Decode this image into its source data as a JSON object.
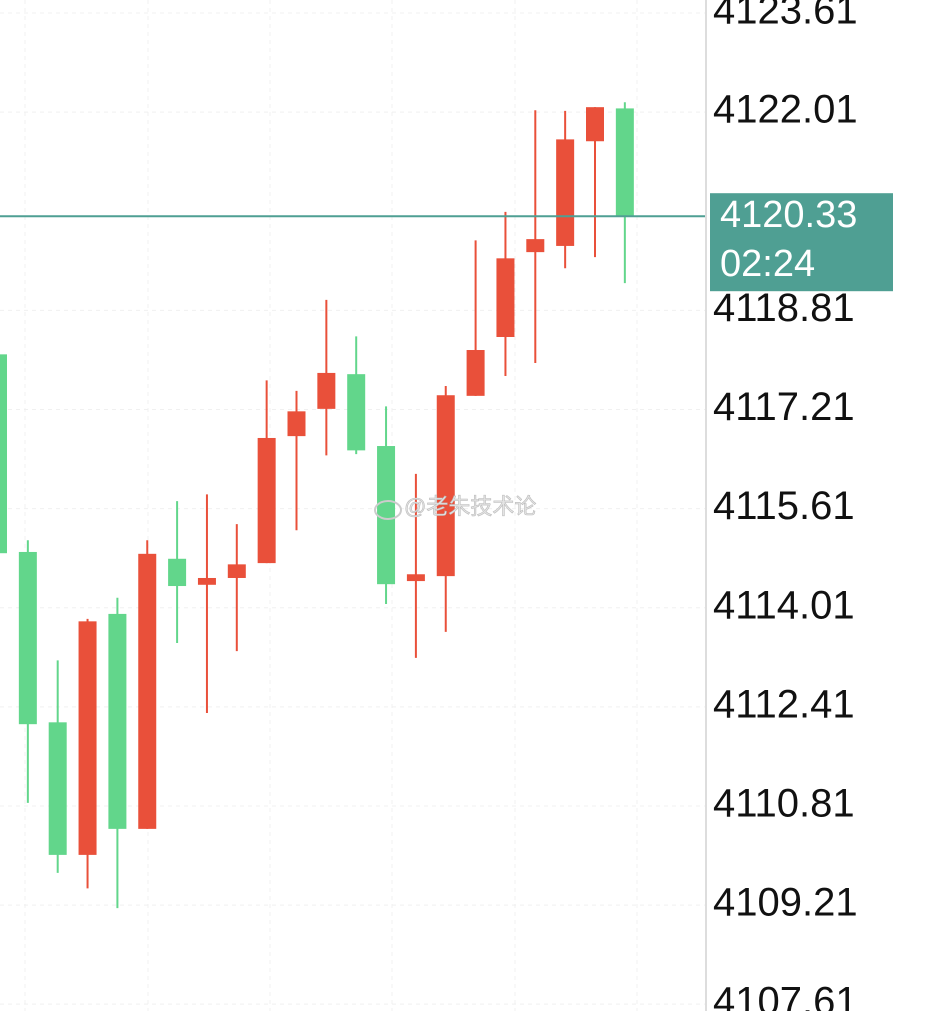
{
  "chart_data": {
    "type": "candlestick",
    "open": [
      4118.1,
      4114.91,
      4112.16,
      4110.02,
      4113.91,
      4110.44,
      4114.8,
      4114.38,
      4114.49,
      4114.73,
      4116.78,
      4117.22,
      4117.78,
      4116.62,
      4114.44,
      4114.52,
      4117.43,
      4118.38,
      4119.75,
      4119.85,
      4121.54,
      4122.07
    ],
    "high": [
      4118.1,
      4115.1,
      4113.16,
      4113.83,
      4114.17,
      4115.1,
      4115.73,
      4115.84,
      4115.36,
      4117.68,
      4117.51,
      4118.98,
      4118.39,
      4117.26,
      4116.17,
      4117.59,
      4119.94,
      4120.4,
      4122.04,
      4122.03,
      4122.09,
      4122.17
    ],
    "low": [
      4114.89,
      4110.86,
      4109.73,
      4109.48,
      4109.16,
      4110.44,
      4113.44,
      4112.31,
      4113.31,
      4114.73,
      4115.26,
      4116.47,
      4116.49,
      4114.07,
      4113.2,
      4113.62,
      4117.43,
      4117.75,
      4117.96,
      4119.49,
      4119.67,
      4119.25
    ],
    "close": [
      4114.89,
      4112.13,
      4110.02,
      4113.79,
      4110.44,
      4114.88,
      4114.36,
      4114.49,
      4114.71,
      4116.75,
      4117.18,
      4117.8,
      4116.55,
      4114.39,
      4114.55,
      4117.44,
      4118.17,
      4119.65,
      4119.96,
      4121.57,
      4122.09,
      4120.33
    ],
    "up_color": "#e9503a",
    "down_color": "#62d68b",
    "ylim": [
      4107.5,
      4123.82
    ],
    "yticks": [
      4107.61,
      4109.21,
      4110.81,
      4112.41,
      4114.01,
      4115.61,
      4117.21,
      4118.81,
      4122.01,
      4123.61
    ],
    "grid": true,
    "last_price": 4120.33,
    "last_time": "02:24",
    "last_color": "#4f9f93",
    "watermark": "@老朱技术论"
  }
}
